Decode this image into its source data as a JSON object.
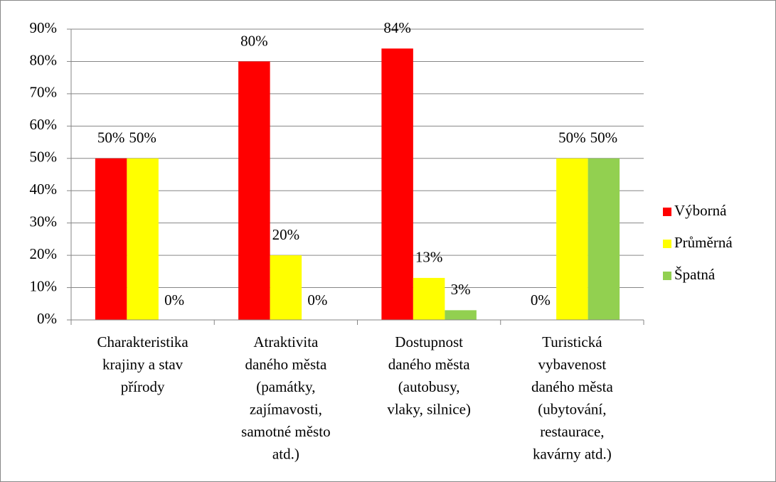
{
  "chart_data": {
    "type": "bar",
    "categories": [
      [
        "Charakteristika",
        "krajiny a stav",
        "přírody"
      ],
      [
        "Atraktivita",
        "daného města",
        "(památky,",
        "zajímavosti,",
        "samotné město",
        "atd.)"
      ],
      [
        "Dostupnost",
        "daného města",
        "(autobusy,",
        "vlaky, silnice)"
      ],
      [
        "Turistická",
        "vybavenost",
        "daného města",
        "(ubytování,",
        "restaurace,",
        "kavárny atd.)"
      ]
    ],
    "series": [
      {
        "name": "Výborná",
        "color": "#ff0000",
        "values": [
          50,
          80,
          84,
          0
        ],
        "value_labels": [
          "50%",
          "80%",
          "84%",
          "0%"
        ]
      },
      {
        "name": "Průměrná",
        "color": "#ffff00",
        "values": [
          50,
          20,
          13,
          50
        ],
        "value_labels": [
          "50%",
          "20%",
          "13%",
          "50%"
        ]
      },
      {
        "name": "Špatná",
        "color": "#92d050",
        "values": [
          0,
          0,
          3,
          50
        ],
        "value_labels": [
          "0%",
          "0%",
          "3%",
          "50%"
        ]
      }
    ],
    "ylim": [
      0,
      90
    ],
    "yticks": [
      {
        "value": 0,
        "label": "0%"
      },
      {
        "value": 10,
        "label": "10%"
      },
      {
        "value": 20,
        "label": "20%"
      },
      {
        "value": 30,
        "label": "30%"
      },
      {
        "value": 40,
        "label": "40%"
      },
      {
        "value": 50,
        "label": "50%"
      },
      {
        "value": 60,
        "label": "60%"
      },
      {
        "value": 70,
        "label": "70%"
      },
      {
        "value": 80,
        "label": "80%"
      },
      {
        "value": 90,
        "label": "90%"
      }
    ],
    "grid": true,
    "legend": "right"
  }
}
